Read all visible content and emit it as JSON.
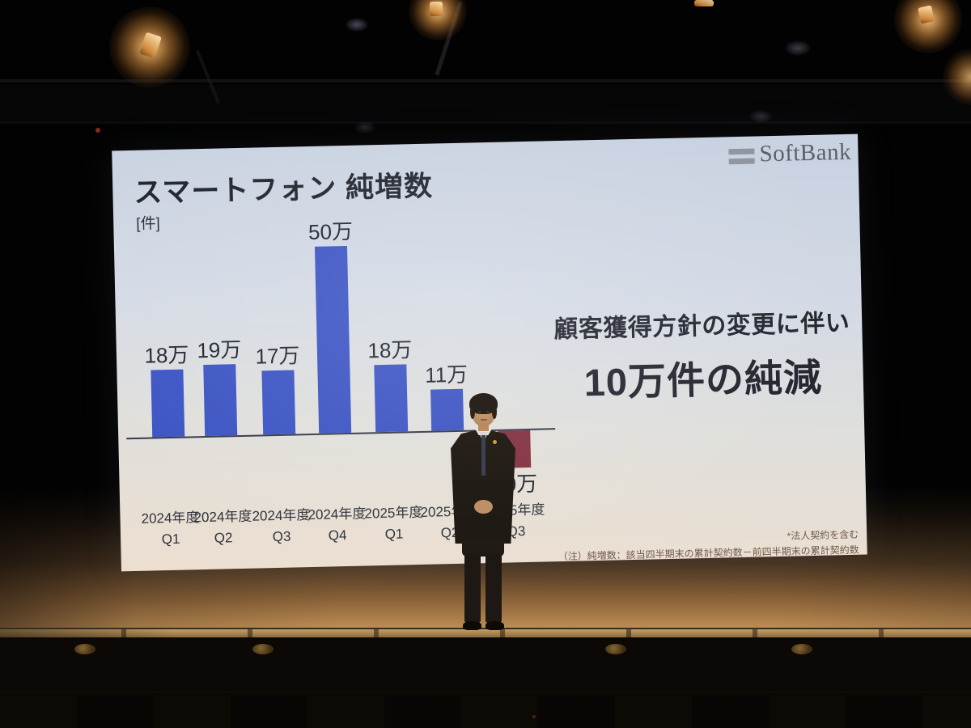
{
  "slide": {
    "logo_text": "SoftBank",
    "title": "スマートフォン 純増数",
    "unit": "[件]",
    "message_line1": "顧客獲得方針の変更に伴い",
    "message_line2": "10万件の純減",
    "footnote1": "*法人契約を含む",
    "footnote2": "（注）純増数：該当四半期末の累計契約数－前四半期末の累計契約数"
  },
  "chart_data": {
    "type": "bar",
    "title": "スマートフォン 純増数",
    "ylabel": "[件]",
    "categories": [
      "2024年度 Q1",
      "2024年度 Q2",
      "2024年度 Q3",
      "2024年度 Q4",
      "2025年度 Q1",
      "2025年度 Q2",
      "2025年度 Q3"
    ],
    "values": [
      18,
      19,
      17,
      50,
      18,
      11,
      -10
    ],
    "unit": "万",
    "bar_labels": [
      "18万",
      "19万",
      "17万",
      "50万",
      "18万",
      "11万",
      "10万"
    ],
    "annotation": "顧客獲得方針の変更に伴い 10万件の純減",
    "positive_color": "#3c54c4",
    "negative_color": "#82313f",
    "grid": false,
    "y_axis_shown": false,
    "baseline": 0
  },
  "colors": {
    "bar_positive": "#3c54c4",
    "bar_negative": "#82313f",
    "logo_gray": "#596069",
    "axis_line": "#343845"
  }
}
